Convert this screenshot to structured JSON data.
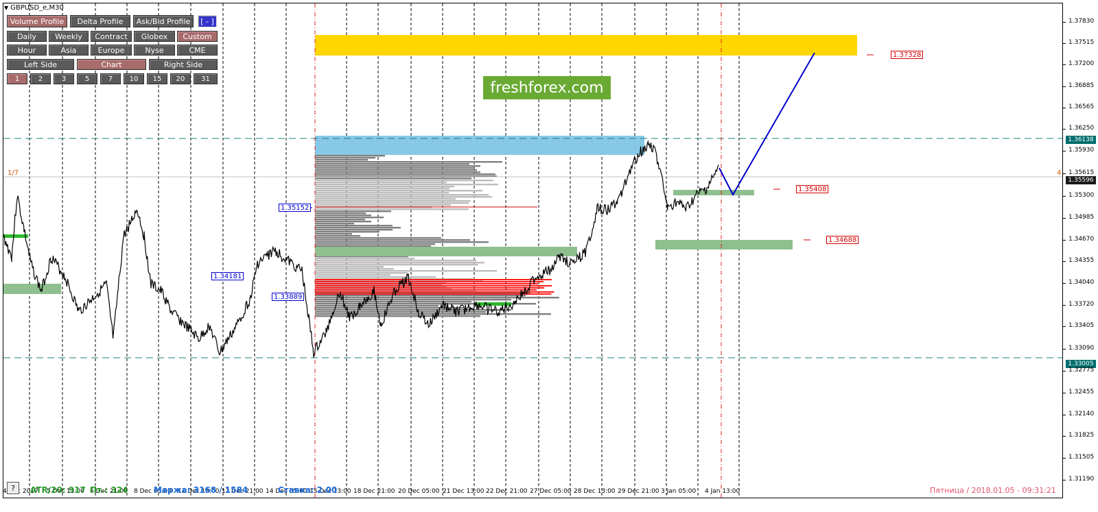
{
  "symbol": "GBPUSD_e,M30",
  "toolbar": {
    "row1": [
      "Volume Profile",
      "Delta Profile",
      "Ask/Bid Profile",
      "[ - ]"
    ],
    "row2": [
      "Daily",
      "Weekly",
      "Contract",
      "Globex",
      "Custom"
    ],
    "row3": [
      "Hour",
      "Asia",
      "Europe",
      "Nyse",
      "CME"
    ],
    "row4": [
      "Left Side",
      "Chart",
      "Right Side"
    ],
    "row5": [
      "1",
      "2",
      "3",
      "5",
      "7",
      "10",
      "15",
      "20",
      "31"
    ]
  },
  "price_axis": [
    "1.37830",
    "1.37515",
    "1.37200",
    "1.36885",
    "1.36565",
    "1.36250",
    "1.35930",
    "1.35615",
    "1.35300",
    "1.34985",
    "1.34670",
    "1.34355",
    "1.34040",
    "1.33720",
    "1.33405",
    "1.33090",
    "1.32775",
    "1.32455",
    "1.32140",
    "1.31825",
    "1.31505",
    "1.31190"
  ],
  "axis_tags": {
    "upper": "1.36138",
    "current": "1.35596",
    "lower": "1.33005"
  },
  "time_axis": [
    "4 Dec 2017",
    "5 Dec 13:00",
    "6 Dec 21:00",
    "8 Dec 05:00",
    "11 Dec 13:00",
    "12 Dec 21:00",
    "14 Dec 05:00",
    "15 Dec 13:00",
    "18 Dec 21:00",
    "20 Dec 05:00",
    "21 Dec 13:00",
    "22 Dec 21:00",
    "27 Dec 05:00",
    "28 Dec 13:00",
    "29 Dec 21:00",
    "3 Jan 05:00",
    "4 Jan 13:00"
  ],
  "level_labels": {
    "target_top": "1.37328",
    "support_1": "1.35408",
    "support_2": "1.34688",
    "poc": "1.35152",
    "left_1": "1.34181",
    "left_2": "1.33889"
  },
  "watermark": "freshforex.com",
  "status": {
    "atr": "ATR/20: 917",
    "pt": "Пт.: 324",
    "margin": "Маржа: 3168 / 1584",
    "rate": "Ставка: 2.00",
    "datetime": "Пятница  /  2018.01.05  -  09:31:21"
  },
  "side_marks": {
    "left": "1/7",
    "right": "4"
  },
  "help": "?",
  "colors": {
    "zone_yellow": "#ffd700",
    "zone_blue": "#87c8e6",
    "zone_green": "#8fbf8f",
    "zone_red": "#ff1a1a",
    "forecast_line": "#0000cc",
    "dashed_teal": "#1a8080"
  }
}
